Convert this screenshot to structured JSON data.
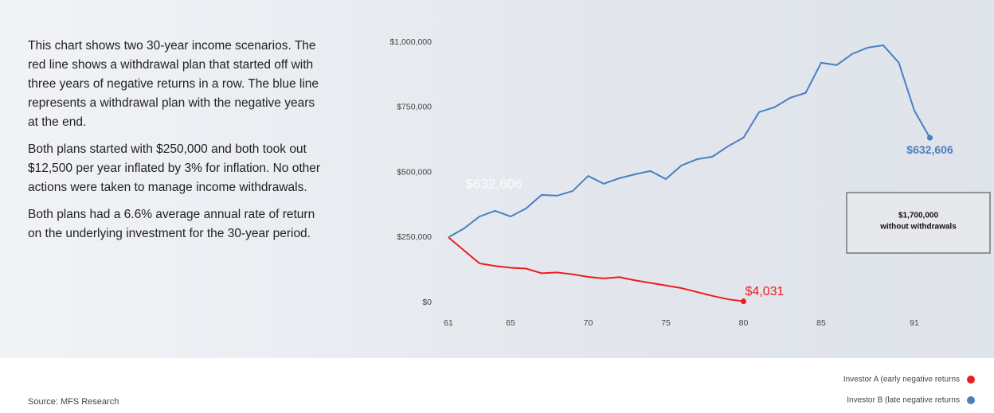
{
  "paragraphs": [
    "This chart shows two 30-year income scenarios. The red line shows a withdrawal plan that started off with three years of negative returns in a row. The blue line represents a withdrawal plan with the negative years at the end.",
    "Both plans started with $250,000 and both took out $12,500 per year inflated by 3% for inflation. No other actions were taken to manage income withdrawals.",
    "Both plans had a 6.6% average annual rate of return on the underlying investment for the 30-year period."
  ],
  "source": "Source: MFS Research",
  "chart_data": {
    "type": "line",
    "x": [
      61,
      62,
      63,
      64,
      65,
      66,
      67,
      68,
      69,
      70,
      71,
      72,
      73,
      74,
      75,
      76,
      77,
      78,
      79,
      80,
      81,
      82,
      83,
      84,
      85,
      86,
      87,
      88,
      89,
      90,
      91,
      92
    ],
    "xlim": [
      60,
      92
    ],
    "xticks": [
      61,
      65,
      70,
      75,
      80,
      85,
      91
    ],
    "ylim": [
      0,
      1000000
    ],
    "yticks": [
      {
        "value": 0,
        "label": "$0"
      },
      {
        "value": 250000,
        "label": "$250,000"
      },
      {
        "value": 500000,
        "label": "$500,000"
      },
      {
        "value": 750000,
        "label": "$750,000"
      },
      {
        "value": 1000000,
        "label": "$1,000,000"
      }
    ],
    "series": [
      {
        "name": "Investor A (early negative returns",
        "color": "#ee1c1c",
        "values": [
          250000,
          200000,
          150000,
          140000,
          133000,
          130000,
          112000,
          115000,
          108000,
          98000,
          92000,
          97000,
          85000,
          75000,
          65000,
          55000,
          40000,
          25000,
          12000,
          4031,
          null,
          null,
          null,
          null,
          null,
          null,
          null,
          null,
          null,
          null,
          null,
          null
        ],
        "value_labels": [
          null,
          null,
          null,
          null,
          null,
          null,
          null,
          null,
          null,
          null,
          null,
          null,
          null,
          null,
          null,
          null,
          null,
          null,
          null,
          "$4,031",
          null,
          null,
          null,
          null,
          null,
          null,
          null,
          null,
          null,
          null,
          null,
          null
        ]
      },
      {
        "name": "Investor B (late negative returns",
        "color": "#4a7fc1",
        "values": [
          250000,
          284000,
          330000,
          352000,
          330000,
          361000,
          413000,
          410000,
          428000,
          486000,
          456000,
          477000,
          492000,
          505000,
          474000,
          526000,
          550000,
          560000,
          600000,
          633000,
          731000,
          750000,
          786000,
          805000,
          921000,
          912000,
          955000,
          979000,
          988000,
          921000,
          737000,
          632606
        ],
        "value_labels": [
          null,
          null,
          null,
          null,
          null,
          null,
          null,
          null,
          null,
          null,
          null,
          null,
          null,
          null,
          null,
          null,
          null,
          null,
          null,
          null,
          null,
          null,
          null,
          null,
          null,
          null,
          null,
          null,
          null,
          null,
          null,
          "$632,606"
        ]
      }
    ],
    "ghost_label": "$632,606",
    "annotation": [
      "$1,700,000",
      "without withdrawals"
    ],
    "grid": false
  }
}
